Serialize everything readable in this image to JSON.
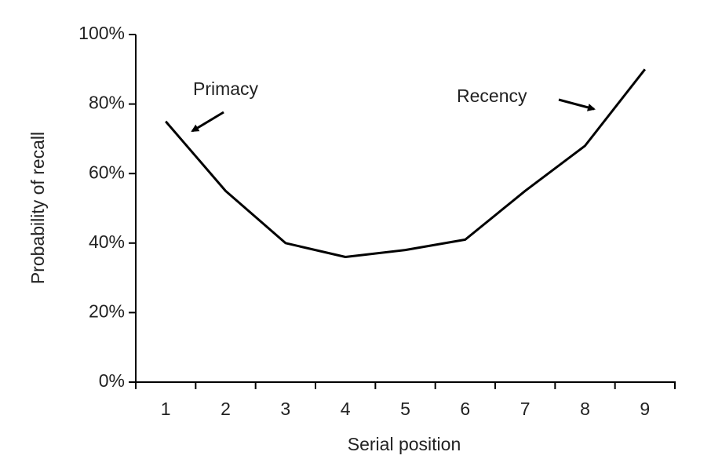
{
  "chart_data": {
    "type": "line",
    "categories": [
      "1",
      "2",
      "3",
      "4",
      "5",
      "6",
      "7",
      "8",
      "9"
    ],
    "series": [
      {
        "color": "#000000",
        "values": [
          75,
          55,
          40,
          36,
          38,
          41,
          55,
          68,
          90
        ]
      }
    ],
    "x_label": "Serial position",
    "y_label": "Probability of recall",
    "ylim": [
      0,
      100
    ],
    "yticks": [
      {
        "value": 0,
        "label": "0%"
      },
      {
        "value": 20,
        "label": "20%"
      },
      {
        "value": 40,
        "label": "40%"
      },
      {
        "value": 60,
        "label": "60%"
      },
      {
        "value": 80,
        "label": "80%"
      },
      {
        "value": 100,
        "label": "100%"
      }
    ],
    "annotations": [
      "Primacy",
      "Recency"
    ],
    "grid": false
  }
}
